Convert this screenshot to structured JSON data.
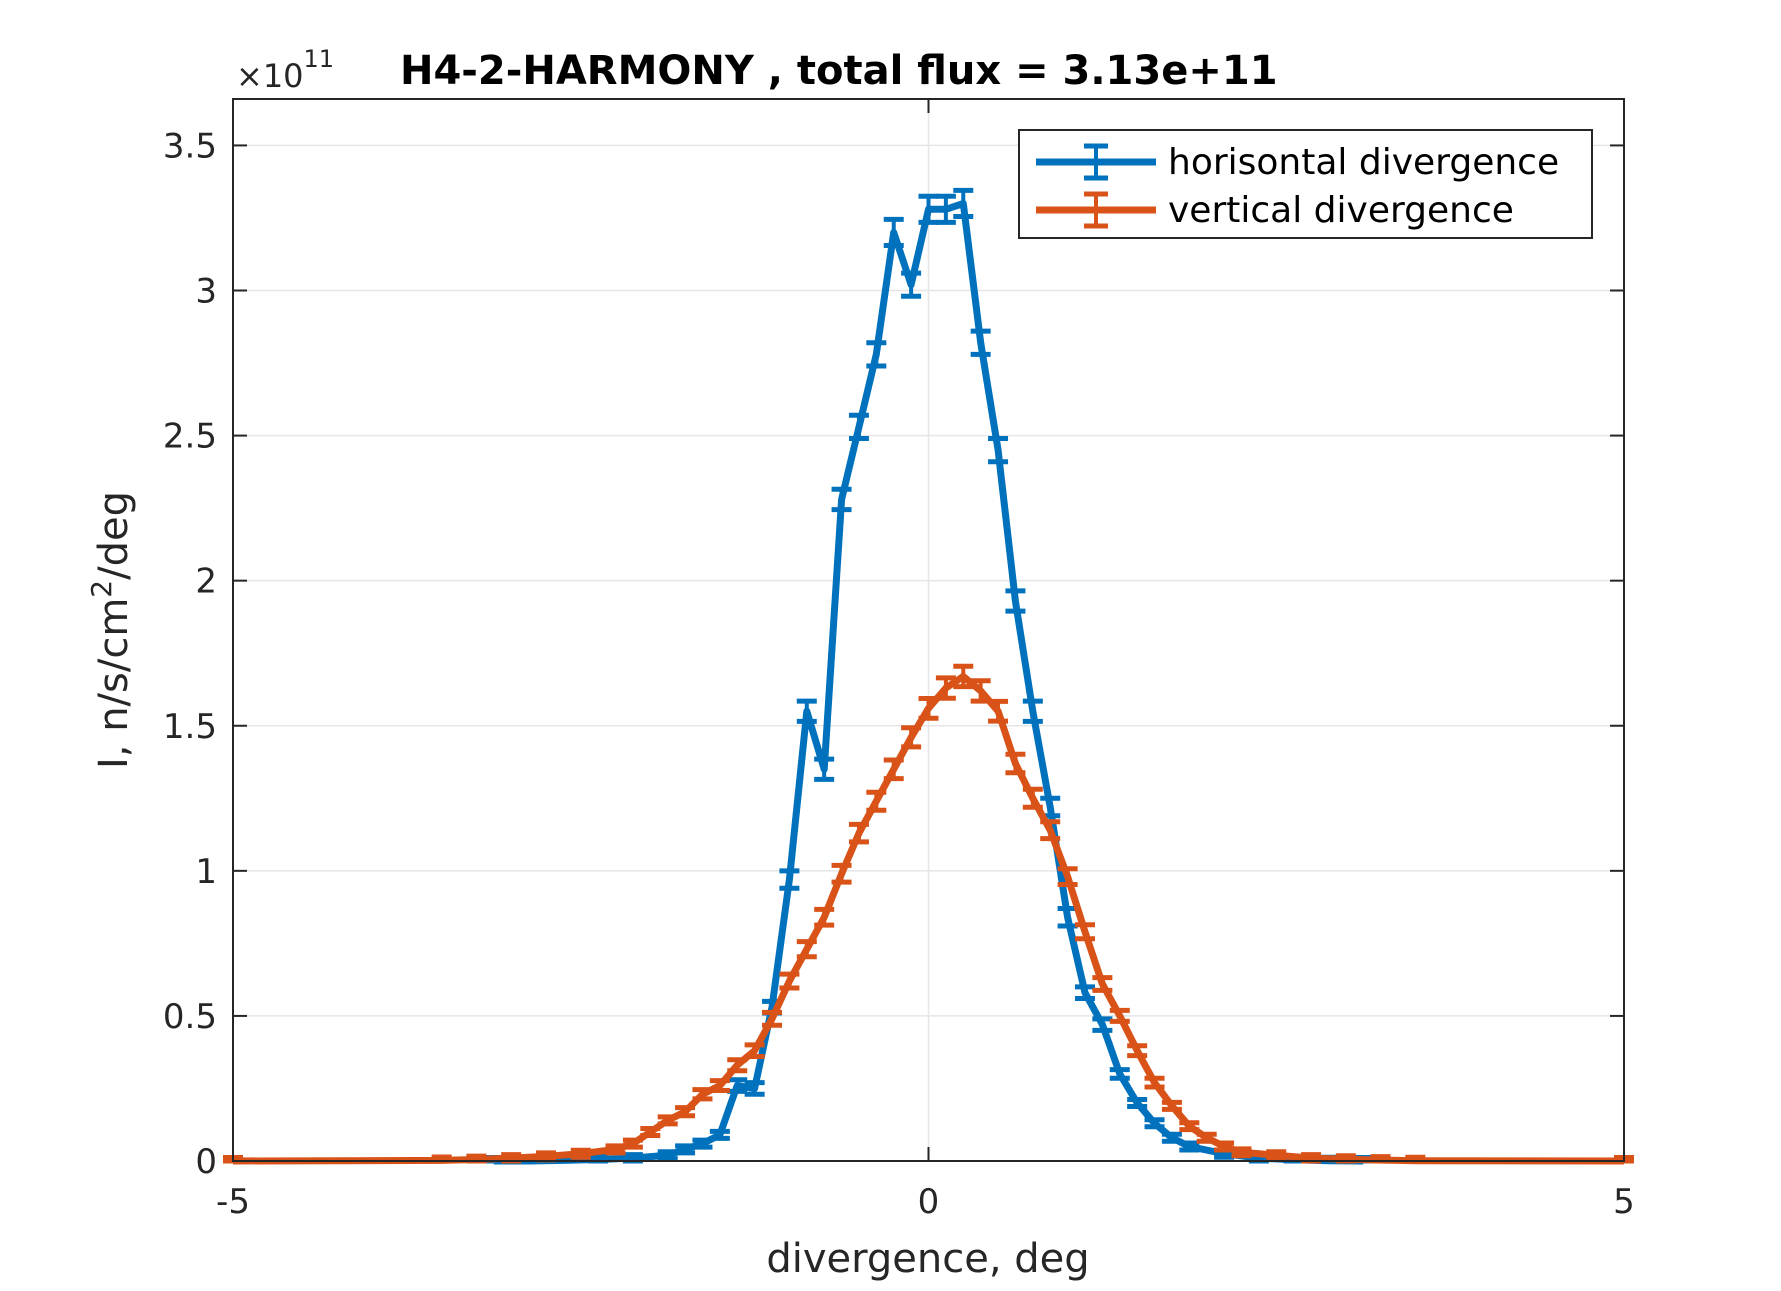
{
  "chart_data": {
    "type": "line",
    "title": "H4-2-HARMONY , total flux =  3.13e+11",
    "xlabel": "divergence, deg",
    "ylabel": "I, n/s/cm",
    "ylabel_sup": "2",
    "ylabel_suffix": "/deg",
    "y_exponent_base": "×10",
    "y_exponent_power": "11",
    "y_scale": 100000000000.0,
    "xlim": [
      -5,
      5
    ],
    "ylim": [
      0,
      3.66
    ],
    "x_ticks": [
      -5,
      0,
      5
    ],
    "x_tick_labels": [
      "-5",
      "0",
      "5"
    ],
    "y_ticks": [
      0,
      0.5,
      1,
      1.5,
      2,
      2.5,
      3,
      3.5
    ],
    "y_tick_labels": [
      "0",
      "0.5",
      "1",
      "1.5",
      "2",
      "2.5",
      "3",
      "3.5"
    ],
    "grid": true,
    "legend_position": "top-right",
    "series": [
      {
        "name": "horisontal divergence",
        "color": "#0072BD",
        "x": [
          -3.125,
          -2.875,
          -2.625,
          -2.375,
          -2.125,
          -1.875,
          -1.75,
          -1.625,
          -1.5,
          -1.375,
          -1.25,
          -1.125,
          -1.0,
          -0.875,
          -0.75,
          -0.625,
          -0.5,
          -0.375,
          -0.25,
          -0.125,
          0.0,
          0.125,
          0.25,
          0.375,
          0.5,
          0.625,
          0.75,
          0.875,
          1.0,
          1.125,
          1.25,
          1.375,
          1.5,
          1.625,
          1.75,
          1.875,
          2.125,
          2.375,
          2.625,
          2.875,
          3.125
        ],
        "y": [
          0.0,
          0.0,
          0.002,
          0.005,
          0.01,
          0.02,
          0.04,
          0.06,
          0.09,
          0.26,
          0.25,
          0.53,
          0.97,
          1.55,
          1.35,
          2.28,
          2.53,
          2.78,
          3.2,
          3.02,
          3.28,
          3.28,
          3.3,
          2.82,
          2.45,
          1.93,
          1.55,
          1.22,
          0.84,
          0.58,
          0.47,
          0.3,
          0.2,
          0.13,
          0.08,
          0.05,
          0.025,
          0.01,
          0.004,
          0.001,
          0.0
        ],
        "err": [
          0.0,
          0.0,
          0.001,
          0.002,
          0.003,
          0.005,
          0.007,
          0.009,
          0.011,
          0.02,
          0.02,
          0.02,
          0.03,
          0.035,
          0.035,
          0.035,
          0.04,
          0.04,
          0.045,
          0.04,
          0.045,
          0.045,
          0.045,
          0.04,
          0.04,
          0.035,
          0.035,
          0.03,
          0.03,
          0.02,
          0.02,
          0.015,
          0.012,
          0.01,
          0.008,
          0.006,
          0.004,
          0.002,
          0.001,
          0.001,
          0.0
        ]
      },
      {
        "name": "vertical divergence",
        "color": "#D95319",
        "x": [
          -5.0,
          -3.5,
          -3.25,
          -3.0,
          -2.75,
          -2.5,
          -2.25,
          -2.125,
          -2.0,
          -1.875,
          -1.75,
          -1.625,
          -1.5,
          -1.375,
          -1.25,
          -1.125,
          -1.0,
          -0.875,
          -0.75,
          -0.625,
          -0.5,
          -0.375,
          -0.25,
          -0.125,
          0.0,
          0.125,
          0.25,
          0.375,
          0.5,
          0.625,
          0.75,
          0.875,
          1.0,
          1.125,
          1.25,
          1.375,
          1.5,
          1.625,
          1.75,
          1.875,
          2.0,
          2.125,
          2.25,
          2.5,
          2.75,
          3.0,
          3.25,
          3.5,
          5.0
        ],
        "y": [
          0.0,
          0.002,
          0.005,
          0.01,
          0.016,
          0.025,
          0.04,
          0.06,
          0.1,
          0.14,
          0.17,
          0.23,
          0.26,
          0.33,
          0.38,
          0.49,
          0.62,
          0.73,
          0.84,
          0.99,
          1.13,
          1.24,
          1.35,
          1.46,
          1.56,
          1.63,
          1.67,
          1.62,
          1.55,
          1.37,
          1.25,
          1.14,
          0.98,
          0.79,
          0.61,
          0.5,
          0.38,
          0.27,
          0.19,
          0.12,
          0.08,
          0.05,
          0.03,
          0.02,
          0.01,
          0.006,
          0.003,
          0.001,
          0.0
        ],
        "err": [
          0.0,
          0.001,
          0.002,
          0.003,
          0.004,
          0.005,
          0.007,
          0.008,
          0.01,
          0.012,
          0.014,
          0.016,
          0.017,
          0.019,
          0.02,
          0.022,
          0.024,
          0.026,
          0.027,
          0.029,
          0.03,
          0.031,
          0.032,
          0.033,
          0.034,
          0.035,
          0.035,
          0.035,
          0.034,
          0.032,
          0.031,
          0.029,
          0.027,
          0.024,
          0.022,
          0.019,
          0.017,
          0.015,
          0.012,
          0.01,
          0.008,
          0.007,
          0.005,
          0.004,
          0.003,
          0.002,
          0.002,
          0.001,
          0.0
        ]
      }
    ]
  }
}
